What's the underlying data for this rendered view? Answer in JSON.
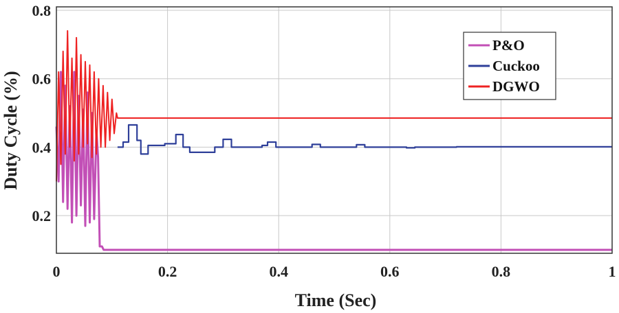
{
  "chart_data": {
    "type": "line",
    "title": "",
    "xlabel": "Time (Sec)",
    "ylabel": "Duty Cycle (%)",
    "xlim": [
      0,
      1
    ],
    "ylim": [
      0.09,
      0.81
    ],
    "xticks": [
      0,
      0.2,
      0.4,
      0.6,
      0.8,
      1
    ],
    "xtick_labels": [
      "0",
      "0.2",
      "0.4",
      "0.6",
      "0.8",
      "1"
    ],
    "yticks": [
      0.2,
      0.4,
      0.6,
      0.8
    ],
    "ytick_labels": [
      "0.2",
      "0.4",
      "0.6",
      "0.8"
    ],
    "grid": true,
    "legend_position": "top-right",
    "series": [
      {
        "name": "P&O",
        "color": "#c24fb6",
        "x": [
          0,
          0.004,
          0.008,
          0.012,
          0.016,
          0.02,
          0.024,
          0.028,
          0.032,
          0.036,
          0.04,
          0.044,
          0.048,
          0.052,
          0.056,
          0.06,
          0.064,
          0.068,
          0.072,
          0.075,
          0.078,
          0.08,
          0.082,
          0.085,
          0.09,
          1.0
        ],
        "y": [
          0.46,
          0.3,
          0.62,
          0.24,
          0.58,
          0.22,
          0.52,
          0.18,
          0.62,
          0.2,
          0.55,
          0.23,
          0.51,
          0.17,
          0.56,
          0.18,
          0.5,
          0.19,
          0.45,
          0.37,
          0.11,
          0.11,
          0.11,
          0.1,
          0.1,
          0.1
        ]
      },
      {
        "name": "Cuckoo",
        "color": "#2e3f99",
        "x": [
          0.11,
          0.12,
          0.12,
          0.13,
          0.13,
          0.145,
          0.145,
          0.152,
          0.152,
          0.165,
          0.165,
          0.195,
          0.195,
          0.215,
          0.215,
          0.228,
          0.228,
          0.24,
          0.24,
          0.285,
          0.285,
          0.3,
          0.3,
          0.315,
          0.315,
          0.37,
          0.37,
          0.38,
          0.38,
          0.395,
          0.395,
          0.46,
          0.46,
          0.475,
          0.475,
          0.54,
          0.54,
          0.555,
          0.555,
          0.63,
          0.63,
          0.645,
          0.645,
          0.72,
          0.72,
          1.0
        ],
        "y": [
          0.4,
          0.4,
          0.415,
          0.415,
          0.465,
          0.465,
          0.42,
          0.42,
          0.38,
          0.38,
          0.405,
          0.405,
          0.41,
          0.41,
          0.437,
          0.437,
          0.4,
          0.4,
          0.385,
          0.385,
          0.4,
          0.4,
          0.423,
          0.423,
          0.4,
          0.4,
          0.405,
          0.405,
          0.415,
          0.415,
          0.4,
          0.4,
          0.408,
          0.408,
          0.4,
          0.4,
          0.407,
          0.407,
          0.4,
          0.4,
          0.398,
          0.398,
          0.4,
          0.4,
          0.401,
          0.401
        ]
      },
      {
        "name": "DGWO",
        "color": "#ee2222",
        "x": [
          0,
          0.004,
          0.008,
          0.012,
          0.016,
          0.02,
          0.024,
          0.028,
          0.032,
          0.036,
          0.04,
          0.044,
          0.048,
          0.052,
          0.056,
          0.06,
          0.064,
          0.068,
          0.072,
          0.076,
          0.08,
          0.084,
          0.088,
          0.092,
          0.096,
          0.1,
          0.104,
          0.108,
          0.11,
          1.0
        ],
        "y": [
          0.3,
          0.62,
          0.35,
          0.68,
          0.38,
          0.74,
          0.4,
          0.66,
          0.36,
          0.72,
          0.38,
          0.67,
          0.4,
          0.65,
          0.41,
          0.64,
          0.37,
          0.62,
          0.38,
          0.6,
          0.4,
          0.58,
          0.4,
          0.56,
          0.42,
          0.54,
          0.44,
          0.5,
          0.485,
          0.485
        ]
      }
    ]
  }
}
